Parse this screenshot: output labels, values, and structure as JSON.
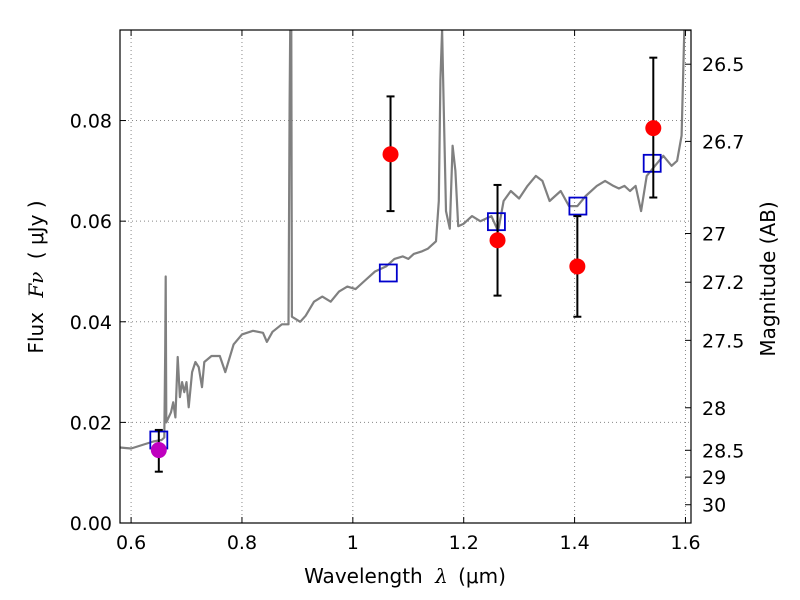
{
  "chart_data": {
    "type": "scatter",
    "xlabel_prefix": "Wavelength",
    "xlabel_symbol": "λ",
    "xlabel_unit": "(μm)",
    "ylabel_prefix": "Flux",
    "ylabel_symbol": "Fν",
    "ylabel_unit": "( μJy )",
    "y2label": "Magnitude (AB)",
    "xlim": [
      0.58,
      1.61
    ],
    "ylim": [
      0.0,
      0.098
    ],
    "grid": true,
    "x_ticks": [
      0.6,
      0.8,
      1.0,
      1.2,
      1.4,
      1.6
    ],
    "x_tick_labels": [
      "0.6",
      "0.8",
      "1",
      "1.2",
      "1.4",
      "1.6"
    ],
    "y_ticks": [
      0.0,
      0.02,
      0.04,
      0.06,
      0.08
    ],
    "y_tick_labels": [
      "0.00",
      "0.02",
      "0.04",
      "0.06",
      "0.08"
    ],
    "mag_ticks": [
      26.5,
      26.7,
      27,
      27.2,
      27.5,
      28,
      28.5,
      29,
      30
    ],
    "mag_tick_labels": [
      "26.5",
      "26.7",
      "27",
      "27.2",
      "27.5",
      "28",
      "28.5",
      "29",
      "30"
    ],
    "colors": {
      "spectrum": "#808080",
      "observed": "#ff0000",
      "observed_first": "#bf00bf",
      "model": "#0000cc",
      "errorbar": "#000000",
      "grid": "#888888"
    },
    "observed_points": [
      {
        "x": 0.65,
        "y": 0.0145,
        "yerr_low": 0.0102,
        "yerr_high": 0.0185
      },
      {
        "x": 1.068,
        "y": 0.0733,
        "yerr_low": 0.062,
        "yerr_high": 0.0848
      },
      {
        "x": 1.261,
        "y": 0.0562,
        "yerr_low": 0.0452,
        "yerr_high": 0.0672
      },
      {
        "x": 1.405,
        "y": 0.051,
        "yerr_low": 0.041,
        "yerr_high": 0.061
      },
      {
        "x": 1.542,
        "y": 0.0785,
        "yerr_low": 0.0647,
        "yerr_high": 0.0925
      }
    ],
    "model_points": [
      {
        "x": 0.65,
        "y": 0.0165
      },
      {
        "x": 1.064,
        "y": 0.0497
      },
      {
        "x": 1.259,
        "y": 0.0599
      },
      {
        "x": 1.406,
        "y": 0.063
      },
      {
        "x": 1.54,
        "y": 0.0715
      }
    ],
    "spectrum": [
      [
        0.58,
        0.015
      ],
      [
        0.6,
        0.0148
      ],
      [
        0.62,
        0.0155
      ],
      [
        0.64,
        0.0162
      ],
      [
        0.655,
        0.0165
      ],
      [
        0.66,
        0.017
      ],
      [
        0.6615,
        0.034
      ],
      [
        0.6625,
        0.049
      ],
      [
        0.6635,
        0.02
      ],
      [
        0.672,
        0.022
      ],
      [
        0.676,
        0.024
      ],
      [
        0.68,
        0.021
      ],
      [
        0.684,
        0.033
      ],
      [
        0.688,
        0.025
      ],
      [
        0.692,
        0.028
      ],
      [
        0.696,
        0.026
      ],
      [
        0.7,
        0.028
      ],
      [
        0.704,
        0.023
      ],
      [
        0.71,
        0.03
      ],
      [
        0.716,
        0.032
      ],
      [
        0.722,
        0.031
      ],
      [
        0.728,
        0.027
      ],
      [
        0.732,
        0.032
      ],
      [
        0.745,
        0.0332
      ],
      [
        0.76,
        0.0332
      ],
      [
        0.77,
        0.03
      ],
      [
        0.785,
        0.0355
      ],
      [
        0.8,
        0.0375
      ],
      [
        0.82,
        0.0382
      ],
      [
        0.838,
        0.0378
      ],
      [
        0.845,
        0.036
      ],
      [
        0.855,
        0.038
      ],
      [
        0.872,
        0.0395
      ],
      [
        0.884,
        0.0395
      ],
      [
        0.886,
        0.083
      ],
      [
        0.887,
        0.098
      ],
      [
        0.889,
        0.098
      ],
      [
        0.89,
        0.041
      ],
      [
        0.905,
        0.04
      ],
      [
        0.915,
        0.0412
      ],
      [
        0.93,
        0.044
      ],
      [
        0.945,
        0.045
      ],
      [
        0.96,
        0.044
      ],
      [
        0.975,
        0.046
      ],
      [
        0.99,
        0.047
      ],
      [
        1.005,
        0.0465
      ],
      [
        1.02,
        0.048
      ],
      [
        1.04,
        0.05
      ],
      [
        1.06,
        0.051
      ],
      [
        1.075,
        0.0525
      ],
      [
        1.09,
        0.053
      ],
      [
        1.1,
        0.0525
      ],
      [
        1.11,
        0.0535
      ],
      [
        1.125,
        0.054
      ],
      [
        1.135,
        0.0545
      ],
      [
        1.15,
        0.056
      ],
      [
        1.155,
        0.064
      ],
      [
        1.158,
        0.088
      ],
      [
        1.161,
        0.098
      ],
      [
        1.164,
        0.082
      ],
      [
        1.168,
        0.062
      ],
      [
        1.175,
        0.0585
      ],
      [
        1.18,
        0.075
      ],
      [
        1.185,
        0.07
      ],
      [
        1.19,
        0.059
      ],
      [
        1.2,
        0.0595
      ],
      [
        1.215,
        0.061
      ],
      [
        1.23,
        0.06
      ],
      [
        1.25,
        0.061
      ],
      [
        1.262,
        0.058
      ],
      [
        1.272,
        0.064
      ],
      [
        1.285,
        0.066
      ],
      [
        1.3,
        0.0645
      ],
      [
        1.315,
        0.067
      ],
      [
        1.33,
        0.069
      ],
      [
        1.342,
        0.068
      ],
      [
        1.355,
        0.064
      ],
      [
        1.375,
        0.066
      ],
      [
        1.39,
        0.063
      ],
      [
        1.405,
        0.063
      ],
      [
        1.42,
        0.065
      ],
      [
        1.44,
        0.067
      ],
      [
        1.455,
        0.068
      ],
      [
        1.47,
        0.067
      ],
      [
        1.48,
        0.0665
      ],
      [
        1.49,
        0.067
      ],
      [
        1.5,
        0.066
      ],
      [
        1.51,
        0.067
      ],
      [
        1.52,
        0.062
      ],
      [
        1.53,
        0.069
      ],
      [
        1.545,
        0.071
      ],
      [
        1.56,
        0.073
      ],
      [
        1.575,
        0.071
      ],
      [
        1.585,
        0.072
      ],
      [
        1.593,
        0.077
      ],
      [
        1.598,
        0.098
      ],
      [
        1.61,
        0.098
      ]
    ]
  }
}
